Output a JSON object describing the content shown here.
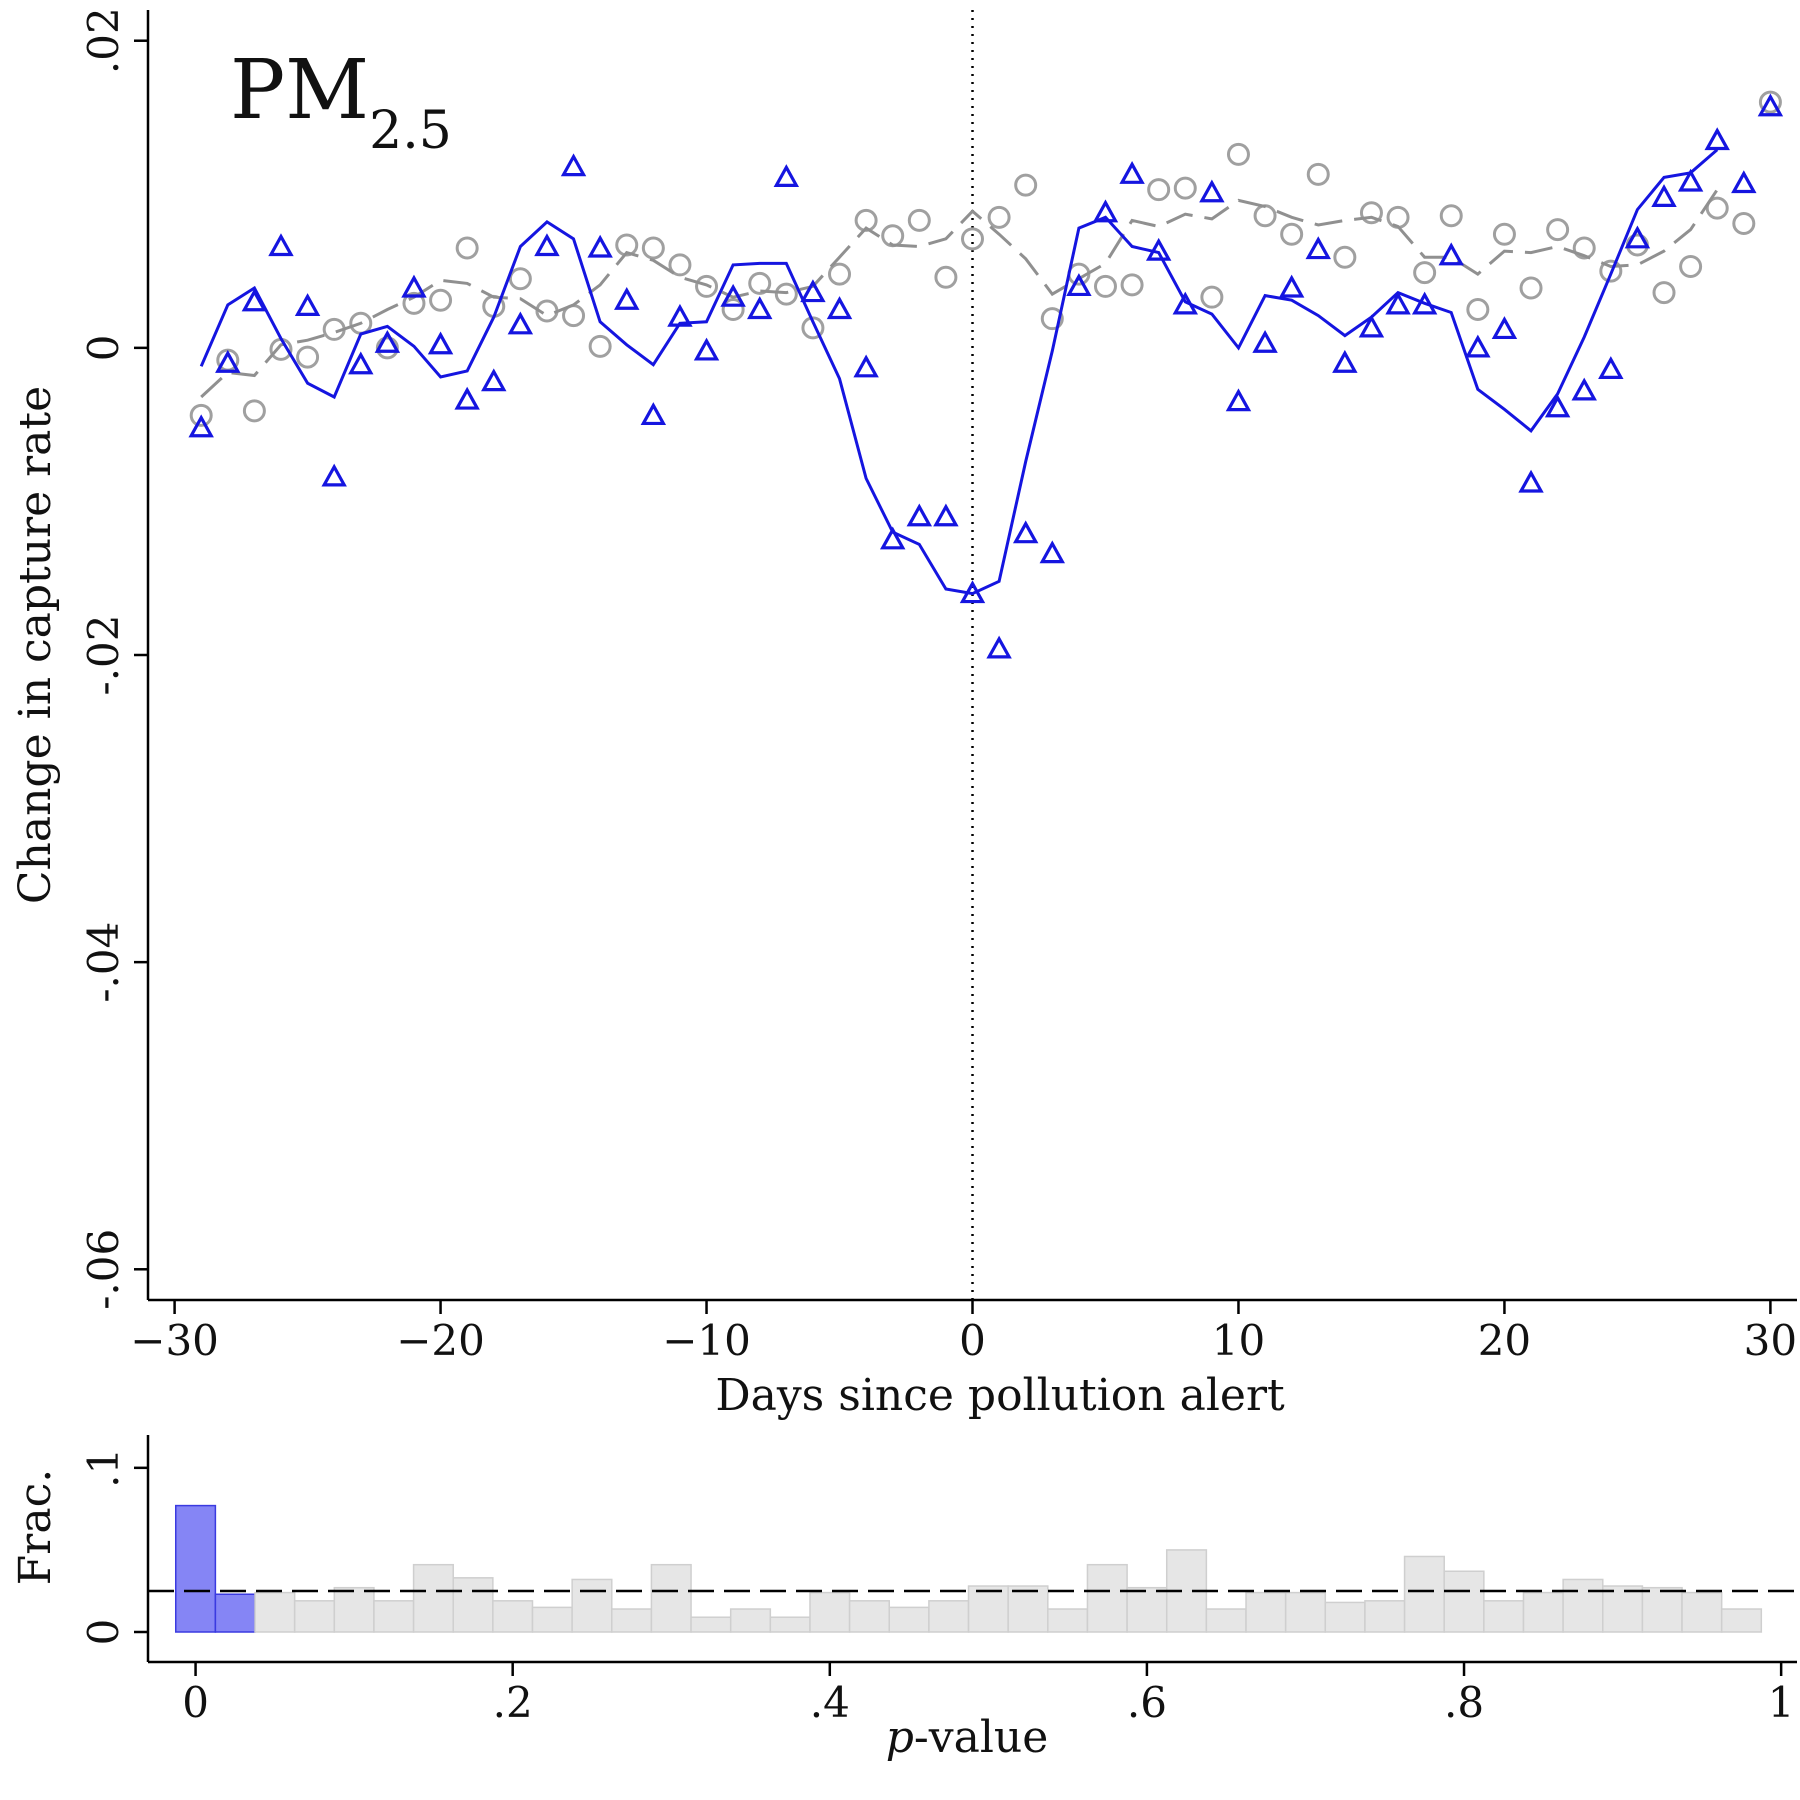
{
  "chart_data": [
    {
      "type": "scatter",
      "title": "PM",
      "title_subscript": "2.5",
      "xlabel": "Days since pollution alert",
      "ylabel": "Change in capture rate",
      "xlim": [
        -31,
        31
      ],
      "ylim": [
        -0.062,
        0.022
      ],
      "x_ticks": [
        -30,
        -20,
        -10,
        0,
        10,
        20,
        30
      ],
      "x_tick_labels": [
        "−30",
        "−20",
        "−10",
        "0",
        "10",
        "20",
        "30"
      ],
      "y_ticks": [
        0.02,
        0,
        -0.02,
        -0.04,
        -0.06
      ],
      "y_tick_labels": [
        ".02",
        "0",
        "-.02",
        "-.04",
        "-.06"
      ],
      "grid": false,
      "reference_line": {
        "x": 0,
        "style": "dotted"
      },
      "series": [
        {
          "marker": "triangle",
          "color": "#1515e0",
          "points": [
            [
              -29,
              -0.0052
            ],
            [
              -28,
              -0.001
            ],
            [
              -27,
              0.003
            ],
            [
              -26,
              0.0066
            ],
            [
              -25,
              0.0027
            ],
            [
              -24,
              -0.0084
            ],
            [
              -23,
              -0.0011
            ],
            [
              -22,
              0.0003
            ],
            [
              -21,
              0.0039
            ],
            [
              -20,
              0.0002
            ],
            [
              -19,
              -0.0034
            ],
            [
              -18,
              -0.0022
            ],
            [
              -17,
              0.0015
            ],
            [
              -16,
              0.0066
            ],
            [
              -15,
              0.0118
            ],
            [
              -14,
              0.0065
            ],
            [
              -13,
              0.0031
            ],
            [
              -12,
              -0.0044
            ],
            [
              -11,
              0.002
            ],
            [
              -10,
              -0.0002
            ],
            [
              -9,
              0.0033
            ],
            [
              -8,
              0.0025
            ],
            [
              -7,
              0.0111
            ],
            [
              -6,
              0.0036
            ],
            [
              -5,
              0.0025
            ],
            [
              -4,
              -0.0013
            ],
            [
              -3,
              -0.0125
            ],
            [
              -2,
              -0.011
            ],
            [
              -1,
              -0.011
            ],
            [
              0,
              -0.016
            ],
            [
              1,
              -0.0196
            ],
            [
              2,
              -0.0121
            ],
            [
              3,
              -0.0134
            ],
            [
              4,
              0.004
            ],
            [
              5,
              0.0088
            ],
            [
              6,
              0.0113
            ],
            [
              7,
              0.0063
            ],
            [
              8,
              0.0028
            ],
            [
              9,
              0.0101
            ],
            [
              10,
              -0.0035
            ],
            [
              11,
              0.0003
            ],
            [
              12,
              0.0039
            ],
            [
              13,
              0.0064
            ],
            [
              14,
              -0.001
            ],
            [
              15,
              0.0013
            ],
            [
              16,
              0.0028
            ],
            [
              17,
              0.0028
            ],
            [
              18,
              0.006
            ],
            [
              19,
              0.0
            ],
            [
              20,
              0.0012
            ],
            [
              21,
              -0.0088
            ],
            [
              22,
              -0.0039
            ],
            [
              23,
              -0.0028
            ],
            [
              24,
              -0.0014
            ],
            [
              25,
              0.0071
            ],
            [
              26,
              0.0098
            ],
            [
              27,
              0.0108
            ],
            [
              28,
              0.0135
            ],
            [
              29,
              0.0107
            ],
            [
              30,
              0.0157
            ]
          ]
        },
        {
          "marker": "line",
          "color": "#1515e0",
          "points": [
            [
              -29,
              -0.0012
            ],
            [
              -28,
              0.0028
            ],
            [
              -27,
              0.0039
            ],
            [
              -26,
              0.0006
            ],
            [
              -25,
              -0.0023
            ],
            [
              -24,
              -0.0032
            ],
            [
              -23,
              0.0009
            ],
            [
              -22,
              0.0014
            ],
            [
              -21,
              0.0001
            ],
            [
              -20,
              -0.0019
            ],
            [
              -19,
              -0.0015
            ],
            [
              -18,
              0.002
            ],
            [
              -17,
              0.0066
            ],
            [
              -16,
              0.0082
            ],
            [
              -15,
              0.0071
            ],
            [
              -14,
              0.0017
            ],
            [
              -13,
              0.0002
            ],
            [
              -12,
              -0.0011
            ],
            [
              -11,
              0.0016
            ],
            [
              -10,
              0.0017
            ],
            [
              -9,
              0.0054
            ],
            [
              -8,
              0.0055
            ],
            [
              -7,
              0.0055
            ],
            [
              -6,
              0.0017
            ],
            [
              -5,
              -0.002
            ],
            [
              -4,
              -0.0085
            ],
            [
              -3,
              -0.012
            ],
            [
              -2,
              -0.0128
            ],
            [
              -1,
              -0.0157
            ],
            [
              0,
              -0.016
            ],
            [
              1,
              -0.0152
            ],
            [
              2,
              -0.0074
            ],
            [
              3,
              -0.0002
            ],
            [
              4,
              0.0078
            ],
            [
              5,
              0.0085
            ],
            [
              6,
              0.0066
            ],
            [
              7,
              0.0062
            ],
            [
              8,
              0.003
            ],
            [
              9,
              0.0022
            ],
            [
              10,
              0.0
            ],
            [
              11,
              0.0034
            ],
            [
              12,
              0.0031
            ],
            [
              13,
              0.0021
            ],
            [
              14,
              0.0008
            ],
            [
              15,
              0.002
            ],
            [
              16,
              0.0036
            ],
            [
              17,
              0.0029
            ],
            [
              18,
              0.0023
            ],
            [
              19,
              -0.0027
            ],
            [
              20,
              -0.004
            ],
            [
              21,
              -0.0054
            ],
            [
              22,
              -0.003
            ],
            [
              23,
              0.0007
            ],
            [
              24,
              0.0048
            ],
            [
              25,
              0.009
            ],
            [
              26,
              0.0111
            ],
            [
              27,
              0.0114
            ],
            [
              28,
              0.0129
            ],
            [
              29,
              null
            ],
            [
              30,
              null
            ]
          ]
        },
        {
          "marker": "circle",
          "color": "#a0a0a0",
          "points": [
            [
              -29,
              -0.0044
            ],
            [
              -28,
              -0.0008
            ],
            [
              -27,
              -0.0041
            ],
            [
              -26,
              -0.0001
            ],
            [
              -25,
              -0.0006
            ],
            [
              -24,
              0.0012
            ],
            [
              -23,
              0.0016
            ],
            [
              -22,
              0.0
            ],
            [
              -21,
              0.0029
            ],
            [
              -20,
              0.0031
            ],
            [
              -19,
              0.0065
            ],
            [
              -18,
              0.0027
            ],
            [
              -17,
              0.0045
            ],
            [
              -16,
              0.0024
            ],
            [
              -15,
              0.0021
            ],
            [
              -14,
              0.0001
            ],
            [
              -13,
              0.0067
            ],
            [
              -12,
              0.0065
            ],
            [
              -11,
              0.0054
            ],
            [
              -10,
              0.004
            ],
            [
              -9,
              0.0025
            ],
            [
              -8,
              0.0042
            ],
            [
              -7,
              0.0035
            ],
            [
              -6,
              0.0013
            ],
            [
              -5,
              0.0048
            ],
            [
              -4,
              0.0083
            ],
            [
              -3,
              0.0073
            ],
            [
              -2,
              0.0083
            ],
            [
              -1,
              0.0046
            ],
            [
              0,
              0.0071
            ],
            [
              1,
              0.0085
            ],
            [
              2,
              0.0106
            ],
            [
              3,
              0.0019
            ],
            [
              4,
              0.0048
            ],
            [
              5,
              0.004
            ],
            [
              6,
              0.0041
            ],
            [
              7,
              0.0103
            ],
            [
              8,
              0.0104
            ],
            [
              9,
              0.0033
            ],
            [
              10,
              0.0126
            ],
            [
              11,
              0.0086
            ],
            [
              12,
              0.0074
            ],
            [
              13,
              0.0113
            ],
            [
              14,
              0.0059
            ],
            [
              15,
              0.0088
            ],
            [
              16,
              0.0085
            ],
            [
              17,
              0.0049
            ],
            [
              18,
              0.0086
            ],
            [
              19,
              0.0025
            ],
            [
              20,
              0.0074
            ],
            [
              21,
              0.0039
            ],
            [
              22,
              0.0077
            ],
            [
              23,
              0.0065
            ],
            [
              24,
              0.005
            ],
            [
              25,
              0.0067
            ],
            [
              26,
              0.0036
            ],
            [
              27,
              0.0053
            ],
            [
              28,
              0.0091
            ],
            [
              29,
              0.0081
            ],
            [
              30,
              0.016
            ]
          ]
        },
        {
          "marker": "dashed-line",
          "color": "#909090",
          "points": [
            [
              -29,
              -0.0032
            ],
            [
              -28,
              -0.0016
            ],
            [
              -27,
              -0.0018
            ],
            [
              -26,
              0.0002
            ],
            [
              -25,
              0.0005
            ],
            [
              -24,
              0.001
            ],
            [
              -23,
              0.0016
            ],
            [
              -22,
              0.0025
            ],
            [
              -21,
              0.0033
            ],
            [
              -20,
              0.0044
            ],
            [
              -19,
              0.0042
            ],
            [
              -18,
              0.0033
            ],
            [
              -17,
              0.0032
            ],
            [
              -16,
              0.0021
            ],
            [
              -15,
              0.0028
            ],
            [
              -14,
              0.0041
            ],
            [
              -13,
              0.0062
            ],
            [
              -12,
              0.0057
            ],
            [
              -11,
              0.0046
            ],
            [
              -10,
              0.0041
            ],
            [
              -9,
              0.0033
            ],
            [
              -8,
              0.0037
            ],
            [
              -7,
              0.0036
            ],
            [
              -6,
              0.004
            ],
            [
              -5,
              0.0059
            ],
            [
              -4,
              0.0078
            ],
            [
              -3,
              0.0067
            ],
            [
              -2,
              0.0066
            ],
            [
              -1,
              0.0071
            ],
            [
              0,
              0.0089
            ],
            [
              1,
              0.0074
            ],
            [
              2,
              0.0058
            ],
            [
              3,
              0.0035
            ],
            [
              4,
              0.0045
            ],
            [
              5,
              0.0055
            ],
            [
              6,
              0.0083
            ],
            [
              7,
              0.0079
            ],
            [
              8,
              0.0087
            ],
            [
              9,
              0.0084
            ],
            [
              10,
              0.0096
            ],
            [
              11,
              0.0092
            ],
            [
              12,
              0.0085
            ],
            [
              13,
              0.008
            ],
            [
              14,
              0.0083
            ],
            [
              15,
              0.0085
            ],
            [
              16,
              0.0079
            ],
            [
              17,
              0.0059
            ],
            [
              18,
              0.0059
            ],
            [
              19,
              0.0048
            ],
            [
              20,
              0.0063
            ],
            [
              21,
              0.0062
            ],
            [
              22,
              0.0066
            ],
            [
              23,
              0.006
            ],
            [
              24,
              0.0053
            ],
            [
              25,
              0.0054
            ],
            [
              26,
              0.0063
            ],
            [
              27,
              0.0077
            ],
            [
              28,
              0.0103
            ],
            [
              29,
              null
            ],
            [
              30,
              null
            ]
          ]
        }
      ]
    },
    {
      "type": "bar",
      "xlabel_italic": "p",
      "xlabel_rest": "-value",
      "ylabel": "Frac.",
      "xlim": [
        -0.03,
        1.01
      ],
      "ylim": [
        0,
        0.12
      ],
      "x_ticks": [
        0,
        0.2,
        0.4,
        0.6,
        0.8,
        1
      ],
      "x_tick_labels": [
        "0",
        ".2",
        ".4",
        ".6",
        ".8",
        "1"
      ],
      "y_ticks": [
        0,
        0.1
      ],
      "y_tick_labels": [
        "0",
        ".1"
      ],
      "reference_line": {
        "y": 0.025,
        "style": "dashed"
      },
      "bin_start": -0.0125,
      "bin_width": 0.025,
      "highlight_color": "#8585f5",
      "base_color": "#e6e6e6",
      "highlight_bins": 2,
      "values": [
        0.077,
        0.023,
        0.024,
        0.019,
        0.027,
        0.019,
        0.041,
        0.033,
        0.019,
        0.015,
        0.032,
        0.014,
        0.041,
        0.009,
        0.014,
        0.009,
        0.024,
        0.019,
        0.015,
        0.019,
        0.028,
        0.028,
        0.014,
        0.041,
        0.027,
        0.05,
        0.014,
        0.024,
        0.024,
        0.018,
        0.019,
        0.046,
        0.037,
        0.019,
        0.024,
        0.032,
        0.028,
        0.027,
        0.024,
        0.014
      ]
    }
  ]
}
